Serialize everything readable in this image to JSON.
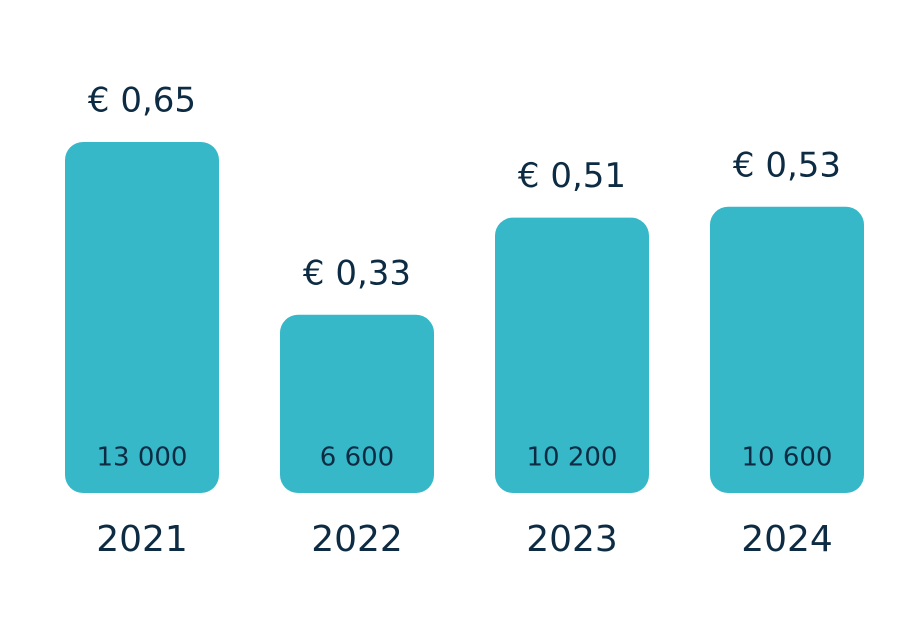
{
  "chart_data": {
    "type": "bar",
    "categories": [
      "2021",
      "2022",
      "2023",
      "2024"
    ],
    "color": "#36b8c9",
    "series": [
      {
        "values": [
          13000,
          6600,
          10200,
          10600
        ],
        "value_labels": [
          "13 000",
          "6 600",
          "10 200",
          "10 600"
        ]
      },
      {
        "values": [
          0.65,
          0.33,
          0.51,
          0.53
        ],
        "value_labels": [
          "€ 0,65",
          "€ 0,33",
          "€ 0,51",
          "€ 0,53"
        ]
      }
    ]
  }
}
